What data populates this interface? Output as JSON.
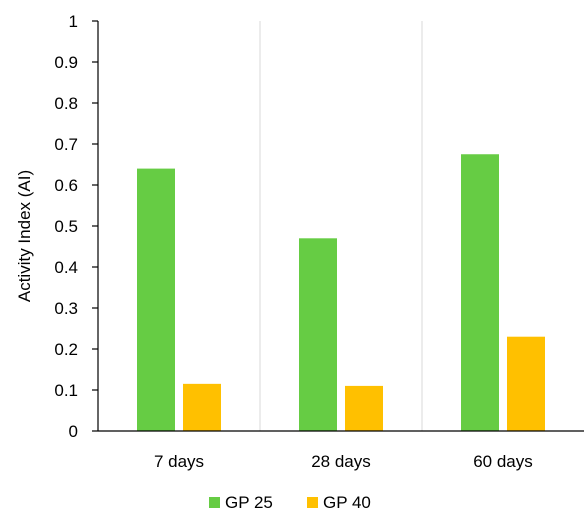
{
  "chart_data": {
    "type": "bar",
    "title": "",
    "xlabel": "",
    "ylabel": "Activity Index (AI)",
    "categories": [
      "7 days",
      "28 days",
      "60 days"
    ],
    "series": [
      {
        "name": "GP 25",
        "color": "#66CC44",
        "values": [
          0.64,
          0.47,
          0.675
        ]
      },
      {
        "name": "GP 40",
        "color": "#FFC000",
        "values": [
          0.115,
          0.11,
          0.23
        ]
      }
    ],
    "ylim": [
      0,
      1
    ],
    "yticks": [
      "0",
      "0.1",
      "0.2",
      "0.3",
      "0.4",
      "0.5",
      "0.6",
      "0.7",
      "0.8",
      "0.9",
      "1"
    ],
    "grid": "vertical category separators",
    "legend": "bottom"
  }
}
